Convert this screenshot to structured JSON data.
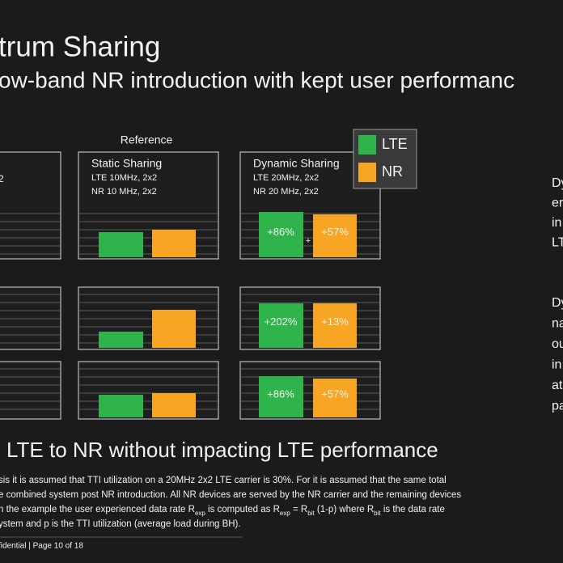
{
  "header": {
    "title": "trum Sharing",
    "subtitle": "ow-band NR introduction with kept user performanc"
  },
  "panel": {
    "reference_label": "Reference",
    "left_fragment": "2",
    "columns": [
      {
        "title": "Static Sharing",
        "lines": [
          "LTE 10MHz, 2x2",
          "NR 10 MHz, 2x2"
        ]
      },
      {
        "title": "Dynamic Sharing",
        "lines": [
          "LTE 20MHz, 2x2",
          "NR 20 MHz, 2x2"
        ],
        "rows": [
          {
            "lte": "+86%",
            "nr": "+57%"
          },
          {
            "lte": "+202%",
            "nr": "+13%"
          },
          {
            "lte": "+86%",
            "nr": "+57%"
          }
        ]
      }
    ],
    "plus_sign": "+",
    "legend": [
      {
        "label": "LTE",
        "color": "#2fb34b"
      },
      {
        "label": "NR",
        "color": "#f6a623"
      }
    ]
  },
  "side_text": {
    "block1": [
      "Dy",
      "er",
      "in",
      "LT"
    ],
    "block2": [
      "Dy",
      "na",
      "ou",
      "in",
      "at",
      "pa"
    ]
  },
  "conclusion": "LTE to NR without impacting LTE performance",
  "footnote": {
    "lines": [
      [
        "sis it is assumed that TTI utilization on a 20MHz 2x2 LTE carrier is 30%. For it is assumed that the same total"
      ],
      [
        "e combined system post NR introduction.  All NR devices are served by the NR carrier and the remaining devices"
      ],
      [
        "n the example the user experienced data rate R",
        "exp",
        "  is computed as R",
        "exp",
        " = R",
        "bit",
        " (1-p) where R",
        "bit",
        " is the data rate"
      ],
      [
        "ystem and p is the TTI utilization (average load during BH)."
      ]
    ]
  },
  "footer": "fidential | Page 10 of 18"
}
